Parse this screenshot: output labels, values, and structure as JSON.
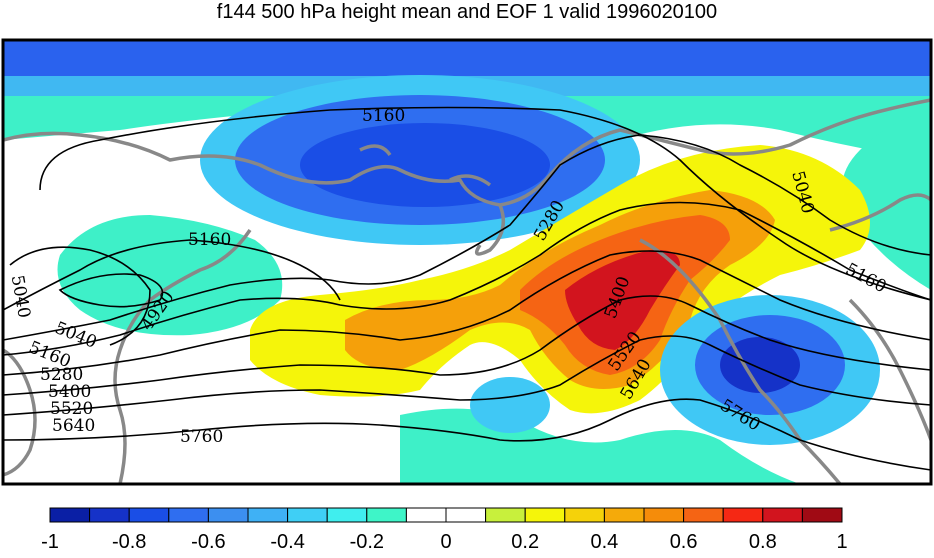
{
  "title": "f144 500 hPa height mean and EOF 1 valid 1996020100",
  "colorbar": {
    "ticks": [
      "-1",
      "-0.8",
      "-0.6",
      "-0.4",
      "-0.2",
      "0",
      "0.2",
      "0.4",
      "0.6",
      "0.8",
      "1"
    ],
    "colors": [
      "#0a1fa5",
      "#1532c8",
      "#1a4ee6",
      "#2f6ef0",
      "#3c8ff0",
      "#3fb1f5",
      "#3fcff5",
      "#40eeee",
      "#3ef5c8",
      "#ffffff",
      "#ffffff",
      "#c8f03c",
      "#f5f50a",
      "#f5d20a",
      "#f5aa0a",
      "#f58c0a",
      "#f56414",
      "#f52814",
      "#d2141e",
      "#a00a14"
    ]
  },
  "contour_labels": [
    "5160",
    "5040",
    "5160",
    "5280",
    "5040",
    "4920",
    "5040",
    "5160",
    "5280",
    "5400",
    "5520",
    "5640",
    "5760",
    "5400",
    "5520",
    "5640",
    "5160",
    "5760"
  ],
  "colors": {
    "land_outline": "#888888",
    "contour": "#000000",
    "frame": "#000000"
  }
}
